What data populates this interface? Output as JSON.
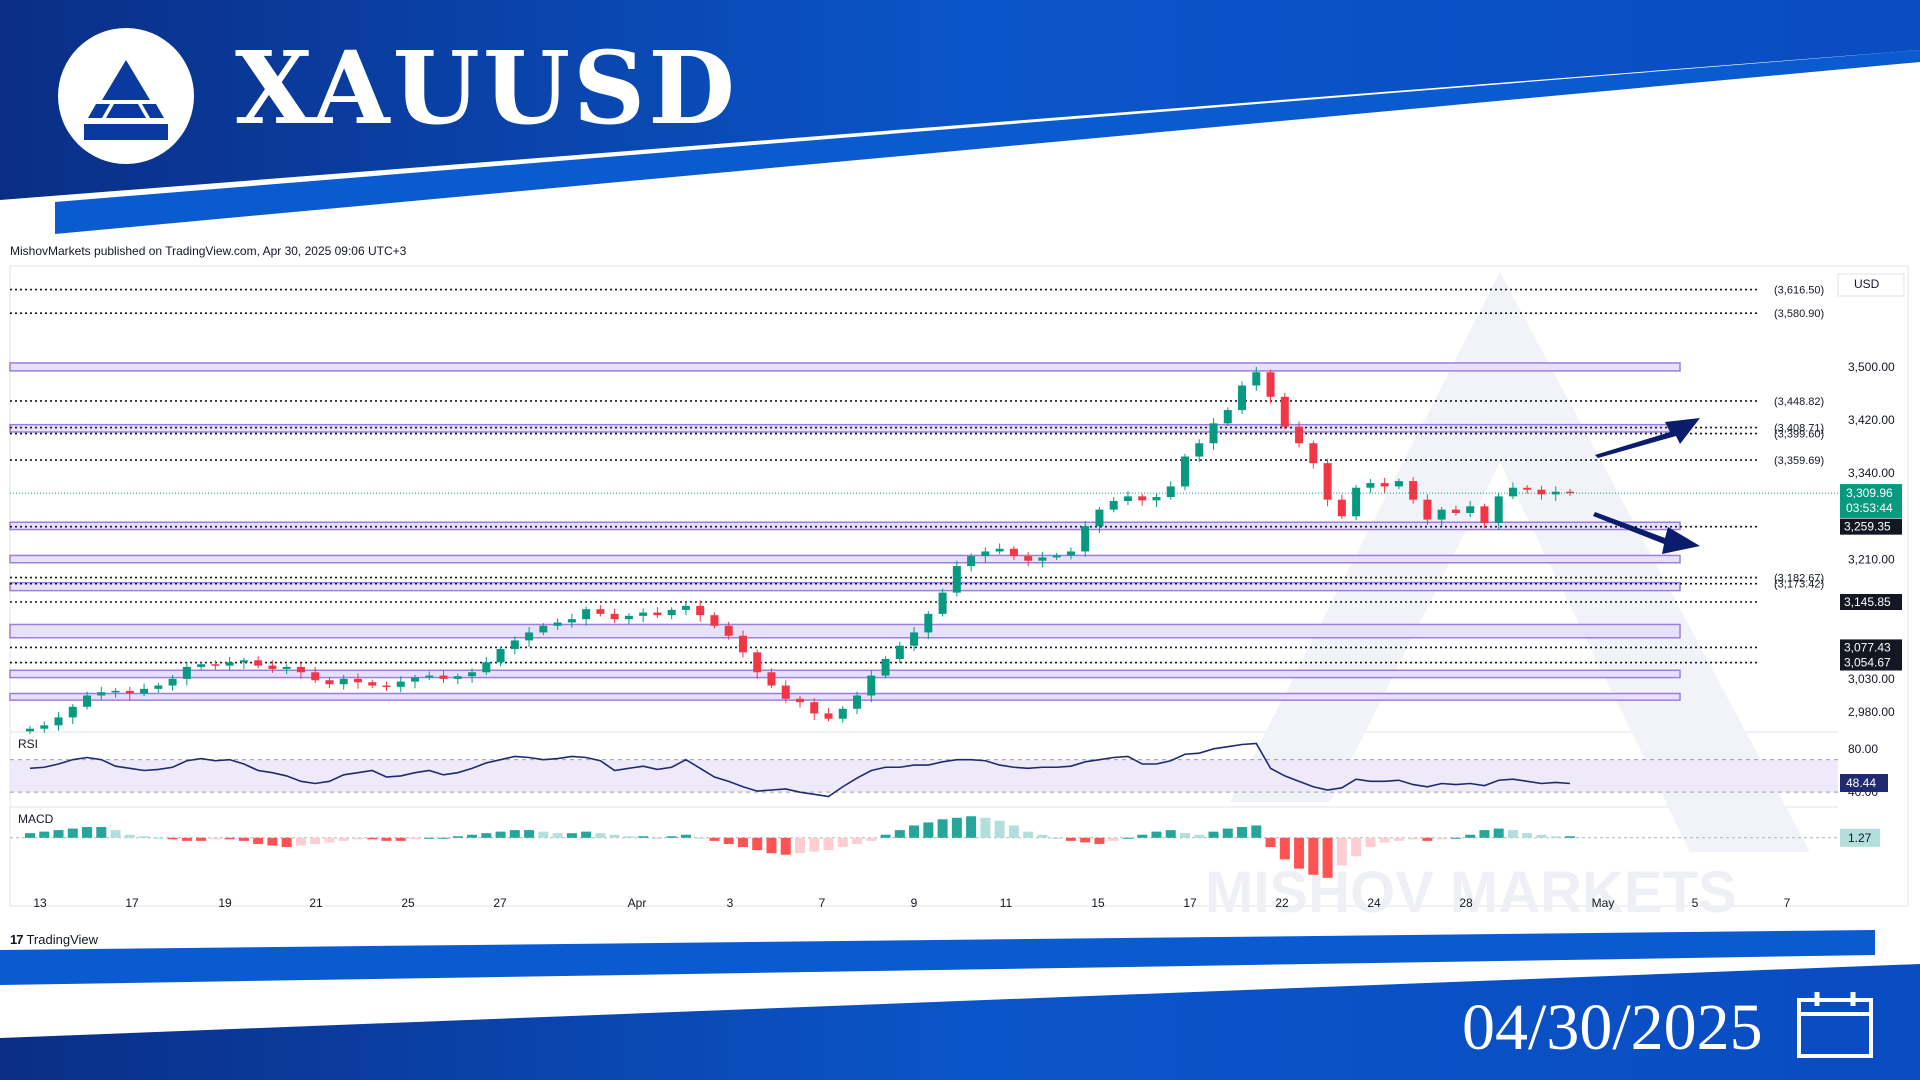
{
  "header": {
    "symbol": "XAUUSD",
    "date": "04/30/2025",
    "logo_icon": "mountain-peak-icon",
    "calendar_icon": "calendar-icon"
  },
  "chart_meta": {
    "published": "MishovMarkets published on TradingView.com, Apr 30, 2025 09:06 UTC+3",
    "watermark": "MISHOV MARKETS",
    "tv_logo": "TradingView",
    "currency": "USD"
  },
  "colors": {
    "banner_blue": "#0a4cc2",
    "banner_dark": "#0a2e86",
    "up": "#089981",
    "down": "#f23645",
    "zone_fill": "#e7e1fb",
    "zone_stroke": "#9c7ee0",
    "arrow": "#0a1c6b",
    "rsi_line": "#1f2a70"
  },
  "chart_data": {
    "type": "candlestick",
    "symbol": "XAUUSD",
    "x_ticks": [
      "13",
      "17",
      "19",
      "21",
      "25",
      "27",
      "Apr",
      "3",
      "7",
      "9",
      "11",
      "15",
      "17",
      "22",
      "24",
      "28",
      "May",
      "5",
      "7"
    ],
    "price_axis_ticks": [
      "3,500.00",
      "3,420.00",
      "3,340.00",
      "3,210.00",
      "3,030.00",
      "2,980.00"
    ],
    "ylim": [
      2950,
      3640
    ],
    "current_price": "3,309.96",
    "countdown": "03:53:44",
    "close_series": [
      2955,
      2960,
      2972,
      2988,
      3005,
      3010,
      3012,
      3008,
      3015,
      3020,
      3030,
      3048,
      3052,
      3050,
      3055,
      3058,
      3050,
      3045,
      3048,
      3040,
      3028,
      3022,
      3030,
      3025,
      3020,
      3018,
      3026,
      3032,
      3035,
      3030,
      3034,
      3040,
      3055,
      3075,
      3088,
      3100,
      3110,
      3115,
      3120,
      3135,
      3128,
      3120,
      3125,
      3130,
      3126,
      3134,
      3140,
      3126,
      3110,
      3095,
      3070,
      3040,
      3020,
      3000,
      2995,
      2978,
      2970,
      2985,
      3005,
      3035,
      3060,
      3080,
      3100,
      3128,
      3160,
      3200,
      3215,
      3222,
      3226,
      3215,
      3208,
      3213,
      3216,
      3222,
      3260,
      3285,
      3298,
      3305,
      3299,
      3304,
      3320,
      3365,
      3385,
      3415,
      3435,
      3472,
      3492,
      3455,
      3410,
      3385,
      3355,
      3300,
      3275,
      3318,
      3325,
      3320,
      3328,
      3300,
      3270,
      3285,
      3280,
      3290,
      3265,
      3305,
      3318,
      3315,
      3308,
      3312,
      3310
    ],
    "levels_dotted": [
      {
        "label": "(3,616.50)",
        "price": 3616.5,
        "style": "bracket"
      },
      {
        "label": "(3,580.90)",
        "price": 3580.9,
        "style": "bracket"
      },
      {
        "label": "(3,448.82)",
        "price": 3448.82,
        "style": "bracket"
      },
      {
        "label": "(3,408.71)",
        "price": 3408.71,
        "style": "bracket"
      },
      {
        "label": "(3,399.60)",
        "price": 3399.6,
        "style": "bracket"
      },
      {
        "label": "(3,359.69)",
        "price": 3359.69,
        "style": "bracket"
      },
      {
        "label": "3,259.35",
        "price": 3259.35,
        "style": "box"
      },
      {
        "label": "(3,182.67)",
        "price": 3182.67,
        "style": "bracket"
      },
      {
        "label": "(3,173.42)",
        "price": 3173.42,
        "style": "bracket"
      },
      {
        "label": "3,145.85",
        "price": 3145.85,
        "style": "box"
      },
      {
        "label": "3,077.43",
        "price": 3077.43,
        "style": "box"
      },
      {
        "label": "3,054.67",
        "price": 3054.67,
        "style": "box"
      }
    ],
    "zones": [
      {
        "from": 3494,
        "to": 3506
      },
      {
        "from": 3402,
        "to": 3413
      },
      {
        "from": 3255,
        "to": 3266
      },
      {
        "from": 3205,
        "to": 3216
      },
      {
        "from": 3163,
        "to": 3175
      },
      {
        "from": 3092,
        "to": 3112
      },
      {
        "from": 3032,
        "to": 3043
      },
      {
        "from": 2998,
        "to": 3008
      }
    ],
    "rsi": {
      "label": "RSI",
      "axis_ticks": [
        "80.00",
        "40.00"
      ],
      "current": "48.44",
      "ylim": [
        30,
        90
      ],
      "band": [
        40,
        70
      ],
      "values": [
        62,
        63,
        66,
        70,
        72,
        70,
        64,
        62,
        60,
        61,
        63,
        69,
        71,
        69,
        70,
        66,
        60,
        58,
        55,
        50,
        48,
        50,
        56,
        58,
        60,
        54,
        55,
        58,
        60,
        56,
        58,
        62,
        67,
        70,
        73,
        72,
        70,
        71,
        73,
        72,
        69,
        60,
        62,
        64,
        61,
        63,
        70,
        62,
        54,
        50,
        45,
        41,
        42,
        43,
        40,
        38,
        36,
        45,
        53,
        60,
        63,
        63,
        65,
        65,
        68,
        70,
        70,
        69,
        65,
        63,
        62,
        63,
        63,
        64,
        68,
        70,
        72,
        73,
        66,
        66,
        69,
        75,
        76,
        80,
        82,
        84,
        85,
        62,
        55,
        50,
        45,
        42,
        44,
        52,
        50,
        50,
        51,
        47,
        45,
        48,
        47,
        48,
        46,
        51,
        52,
        50,
        48,
        49,
        48
      ]
    },
    "macd": {
      "label": "MACD",
      "current": "1.27",
      "ylim": [
        -30,
        20
      ],
      "values": [
        3,
        4,
        5,
        6,
        7,
        7,
        5,
        2,
        1,
        0,
        -1,
        -2,
        -2,
        -1,
        -1,
        -2,
        -4,
        -5,
        -6,
        -5,
        -4,
        -3,
        -2,
        -1,
        -1,
        -2,
        -2,
        -1,
        0,
        0,
        1,
        2,
        3,
        4,
        5,
        5,
        4,
        3,
        3,
        4,
        3,
        2,
        1,
        1,
        0,
        1,
        2,
        0,
        -2,
        -4,
        -6,
        -8,
        -10,
        -11,
        -10,
        -9,
        -8,
        -6,
        -4,
        -2,
        2,
        5,
        8,
        10,
        12,
        13,
        14,
        13,
        11,
        8,
        4,
        2,
        0,
        -2,
        -3,
        -4,
        -2,
        0,
        2,
        4,
        5,
        3,
        2,
        4,
        6,
        7,
        8,
        -6,
        -14,
        -20,
        -24,
        -26,
        -18,
        -12,
        -6,
        -3,
        -2,
        -1,
        -2,
        -1,
        0,
        2,
        5,
        6,
        5,
        3,
        2,
        1,
        1
      ]
    }
  }
}
